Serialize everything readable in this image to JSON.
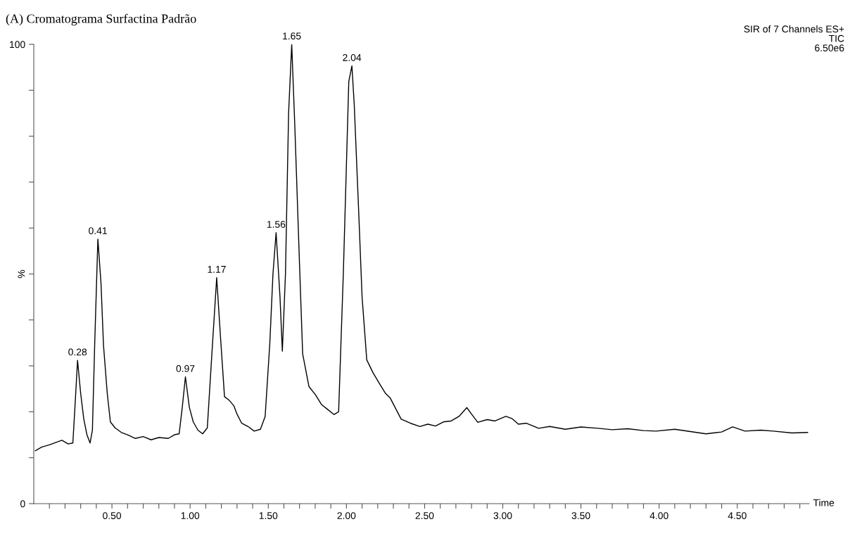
{
  "chart_data": {
    "type": "line",
    "title": "(A) Cromatograma Surfactina Padrão",
    "xlabel": "Time",
    "ylabel": "%",
    "series": [
      {
        "color": "#000000",
        "x": [
          0.01,
          0.05,
          0.1,
          0.14,
          0.18,
          0.22,
          0.25,
          0.265,
          0.28,
          0.3,
          0.32,
          0.34,
          0.36,
          0.375,
          0.39,
          0.41,
          0.43,
          0.446,
          0.47,
          0.49,
          0.52,
          0.56,
          0.6,
          0.65,
          0.7,
          0.75,
          0.8,
          0.86,
          0.9,
          0.93,
          0.95,
          0.97,
          0.995,
          1.02,
          1.05,
          1.08,
          1.11,
          1.14,
          1.17,
          1.195,
          1.22,
          1.25,
          1.28,
          1.3,
          1.33,
          1.37,
          1.41,
          1.45,
          1.48,
          1.51,
          1.53,
          1.55,
          1.575,
          1.59,
          1.61,
          1.63,
          1.65,
          1.67,
          1.7,
          1.72,
          1.76,
          1.8,
          1.84,
          1.88,
          1.92,
          1.95,
          1.98,
          2.015,
          2.035,
          2.05,
          2.08,
          2.1,
          2.13,
          2.17,
          2.21,
          2.25,
          2.28,
          2.35,
          2.41,
          2.47,
          2.52,
          2.57,
          2.62,
          2.67,
          2.72,
          2.77,
          2.8,
          2.84,
          2.9,
          2.95,
          3.02,
          3.06,
          3.1,
          3.15,
          3.23,
          3.3,
          3.4,
          3.5,
          3.61,
          3.7,
          3.8,
          3.9,
          3.98,
          4.1,
          4.2,
          4.3,
          4.4,
          4.47,
          4.55,
          4.65,
          4.73,
          4.85,
          4.95
        ],
        "values": [
          11.5,
          12.3,
          12.8,
          13.3,
          13.8,
          13.0,
          13.2,
          22,
          31.2,
          24,
          18.4,
          15,
          13.2,
          16,
          35,
          57.6,
          48,
          34.5,
          24,
          17.8,
          16.5,
          15.5,
          15,
          14.2,
          14.6,
          13.9,
          14.4,
          14.2,
          15,
          15.2,
          21,
          27.6,
          21,
          17.8,
          16,
          15.2,
          16.5,
          33,
          49.2,
          36,
          23.3,
          22.5,
          21.3,
          19.5,
          17.5,
          16.8,
          15.8,
          16.2,
          19,
          35,
          50,
          59,
          45,
          33.2,
          50,
          85,
          100,
          82,
          52,
          32.6,
          25.5,
          23.8,
          21.6,
          20.5,
          19.4,
          20,
          50,
          91.9,
          95.3,
          86.8,
          62.2,
          45,
          31.3,
          28.5,
          26.2,
          24,
          23,
          18.4,
          17.5,
          16.8,
          17.3,
          16.9,
          17.8,
          18,
          19,
          20.9,
          19.5,
          17.7,
          18.3,
          18,
          19,
          18.5,
          17.3,
          17.5,
          16.4,
          16.8,
          16.2,
          16.7,
          16.4,
          16.1,
          16.3,
          15.9,
          15.8,
          16.2,
          15.7,
          15.2,
          15.6,
          16.7,
          15.8,
          16,
          15.8,
          15.4,
          15.5
        ]
      }
    ],
    "xlim": [
      0,
      4.96
    ],
    "xticks": [
      {
        "value": 0.1,
        "label": null
      },
      {
        "value": 0.2,
        "label": null
      },
      {
        "value": 0.3,
        "label": null
      },
      {
        "value": 0.4,
        "label": null
      },
      {
        "value": 0.5,
        "label": "0.50"
      },
      {
        "value": 0.6,
        "label": null
      },
      {
        "value": 0.7,
        "label": null
      },
      {
        "value": 0.8,
        "label": null
      },
      {
        "value": 0.9,
        "label": null
      },
      {
        "value": 1.0,
        "label": "1.00"
      },
      {
        "value": 1.1,
        "label": null
      },
      {
        "value": 1.2,
        "label": null
      },
      {
        "value": 1.3,
        "label": null
      },
      {
        "value": 1.4,
        "label": null
      },
      {
        "value": 1.5,
        "label": "1.50"
      },
      {
        "value": 1.6,
        "label": null
      },
      {
        "value": 1.7,
        "label": null
      },
      {
        "value": 1.8,
        "label": null
      },
      {
        "value": 1.9,
        "label": null
      },
      {
        "value": 2.0,
        "label": "2.00"
      },
      {
        "value": 2.1,
        "label": null
      },
      {
        "value": 2.2,
        "label": null
      },
      {
        "value": 2.3,
        "label": null
      },
      {
        "value": 2.4,
        "label": null
      },
      {
        "value": 2.5,
        "label": "2.50"
      },
      {
        "value": 2.6,
        "label": null
      },
      {
        "value": 2.7,
        "label": null
      },
      {
        "value": 2.8,
        "label": null
      },
      {
        "value": 2.9,
        "label": null
      },
      {
        "value": 3.0,
        "label": "3.00"
      },
      {
        "value": 3.1,
        "label": null
      },
      {
        "value": 3.2,
        "label": null
      },
      {
        "value": 3.3,
        "label": null
      },
      {
        "value": 3.4,
        "label": null
      },
      {
        "value": 3.5,
        "label": "3.50"
      },
      {
        "value": 3.6,
        "label": null
      },
      {
        "value": 3.7,
        "label": null
      },
      {
        "value": 3.8,
        "label": null
      },
      {
        "value": 3.9,
        "label": null
      },
      {
        "value": 4.0,
        "label": "4.00"
      },
      {
        "value": 4.1,
        "label": null
      },
      {
        "value": 4.2,
        "label": null
      },
      {
        "value": 4.3,
        "label": null
      },
      {
        "value": 4.4,
        "label": null
      },
      {
        "value": 4.5,
        "label": "4.50"
      },
      {
        "value": 4.6,
        "label": null
      },
      {
        "value": 4.7,
        "label": null
      },
      {
        "value": 4.8,
        "label": null
      },
      {
        "value": 4.9,
        "label": null
      }
    ],
    "ylim": [
      0,
      100
    ],
    "yticks": [
      0,
      {
        "value": 10,
        "label": null
      },
      {
        "value": 20,
        "label": null
      },
      {
        "value": 30,
        "label": null
      },
      {
        "value": 40,
        "label": null
      },
      {
        "value": 50,
        "label": null
      },
      {
        "value": 60,
        "label": null
      },
      {
        "value": 70,
        "label": null
      },
      {
        "value": 80,
        "label": null
      },
      {
        "value": 90,
        "label": null
      },
      100
    ],
    "annotations": [
      {
        "text": "0.28",
        "x": 0.28,
        "y": 31.2
      },
      {
        "text": "0.41",
        "x": 0.41,
        "y": 57.6
      },
      {
        "text": "0.97",
        "x": 0.97,
        "y": 27.6
      },
      {
        "text": "1.17",
        "x": 1.17,
        "y": 49.2
      },
      {
        "text": "1.56",
        "x": 1.55,
        "y": 59
      },
      {
        "text": "1.65",
        "x": 1.65,
        "y": 100
      },
      {
        "text": "2.04",
        "x": 2.035,
        "y": 95.3
      },
      "SIR of 7 Channels ES+\nTIC\n6.50e6"
    ],
    "grid": false
  }
}
